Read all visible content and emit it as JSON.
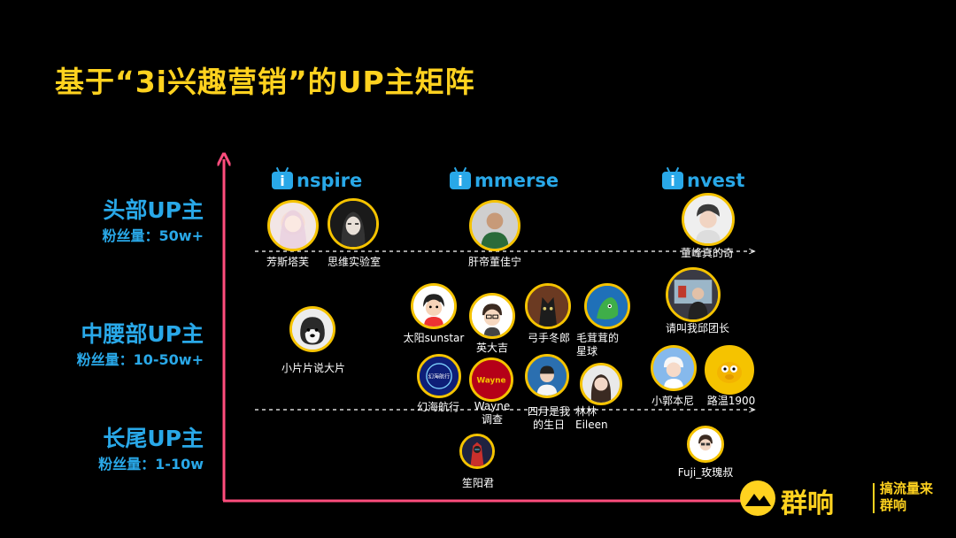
{
  "title": "基于“3i兴趣营销”的UP主矩阵",
  "tiers": [
    {
      "label": "头部UP主",
      "fans": "粉丝量：50w+"
    },
    {
      "label": "中腰部UP主",
      "fans": "粉丝量：10-50w+"
    },
    {
      "label": "长尾UP主",
      "fans": "粉丝量：1-10w"
    }
  ],
  "categories": [
    {
      "letter": "i",
      "rest": "nspire"
    },
    {
      "letter": "i",
      "rest": "mmerse"
    },
    {
      "letter": "i",
      "rest": "nvest"
    }
  ],
  "creators": [
    {
      "name": "芳斯塔芙"
    },
    {
      "name": "思维实验室"
    },
    {
      "name": "肝帝董佳宁"
    },
    {
      "name": "董峰真的奇"
    },
    {
      "name": "小片片说大片"
    },
    {
      "name": "太阳sunstar"
    },
    {
      "name": "英大吉"
    },
    {
      "name": "弓手冬郎"
    },
    {
      "name": "毛茸茸的\n星球"
    },
    {
      "name": "请叫我邱团长"
    },
    {
      "name": "幻海航行"
    },
    {
      "name": "Wayne\n调查"
    },
    {
      "name": "四月是我\n的生日"
    },
    {
      "name": "林林\nEileen"
    },
    {
      "name": "小郭本尼"
    },
    {
      "name": "路温1900"
    },
    {
      "name": "笙阳君"
    },
    {
      "name": "Fuji_玫瑰叔"
    }
  ],
  "avatar_texts": {
    "huanhai": "幻海航行",
    "wayne": "Wayne"
  },
  "brand": {
    "name": "群响",
    "slogan": "搞流量来群响"
  },
  "colors": {
    "background": "#000000",
    "title": "#FFD21F",
    "accent_blue": "#29A8E8",
    "axis": "#FF4D7D",
    "avatar_ring": "#F5C300"
  }
}
